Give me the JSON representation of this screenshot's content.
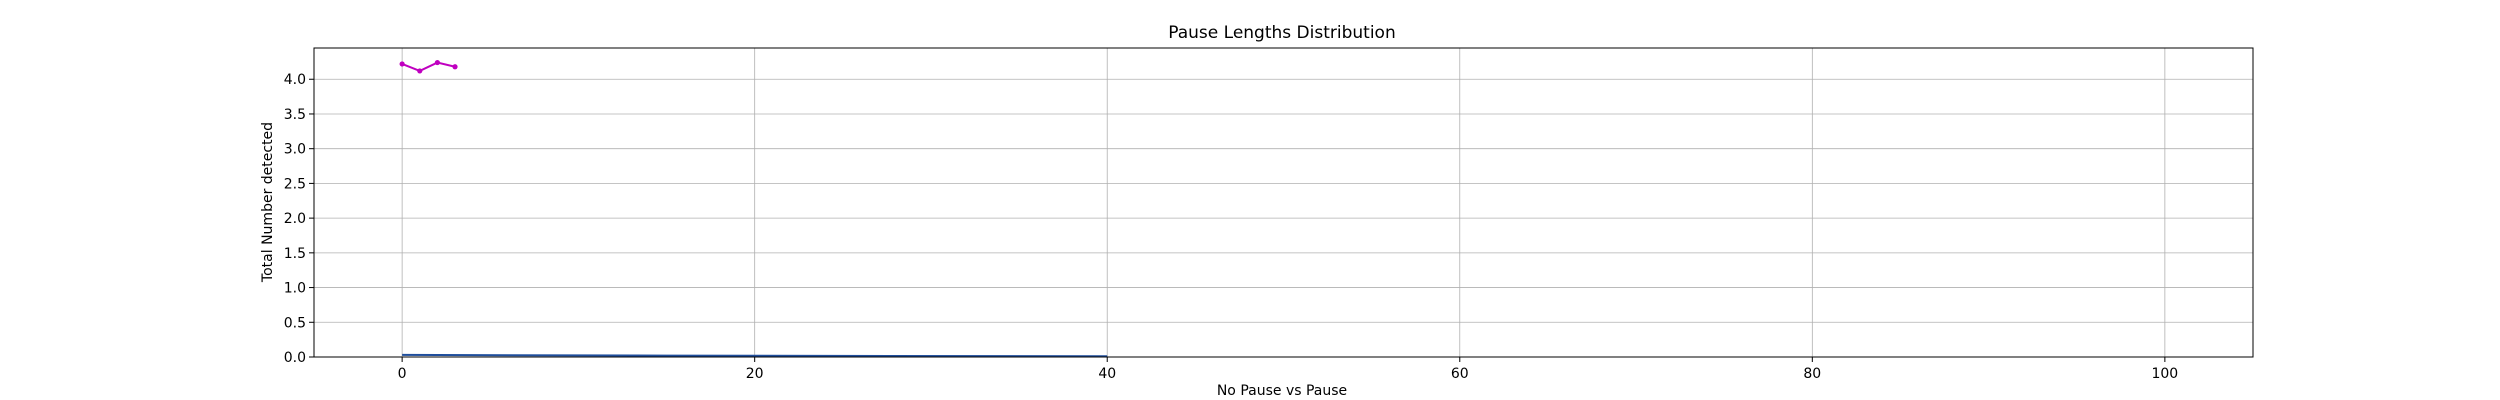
{
  "chart_data": {
    "type": "line",
    "title": "Pause Lengths Distribution",
    "xlabel": "No Pause vs Pause",
    "ylabel": "Total Number detected",
    "xlim": [
      -5,
      105
    ],
    "ylim": [
      0,
      4.45
    ],
    "x_ticks": [
      0,
      20,
      40,
      60,
      80,
      100
    ],
    "x_tick_labels": [
      "0",
      "20",
      "40",
      "60",
      "80",
      "100"
    ],
    "y_ticks": [
      0.0,
      0.5,
      1.0,
      1.5,
      2.0,
      2.5,
      3.0,
      3.5,
      4.0
    ],
    "y_tick_labels": [
      "0.0",
      "0.5",
      "1.0",
      "1.5",
      "2.0",
      "2.5",
      "3.0",
      "3.5",
      "4.0"
    ],
    "grid": true,
    "series": [
      {
        "color": "#c000c0",
        "marker": "dot",
        "x": [
          0,
          1,
          2,
          3
        ],
        "y": [
          4.22,
          4.12,
          4.24,
          4.18
        ]
      },
      {
        "color": "#1f4e9c",
        "marker": "none",
        "x": [
          0,
          15,
          40
        ],
        "y": [
          0.03,
          0.02,
          0.01
        ]
      }
    ]
  }
}
